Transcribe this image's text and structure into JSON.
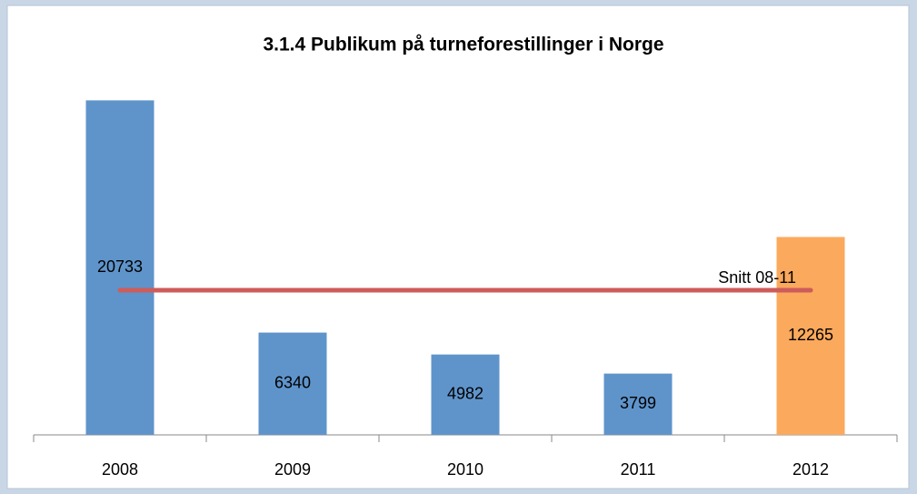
{
  "chart_data": {
    "type": "bar",
    "title": "3.1.4 Publikum på turneforestillinger i Norge",
    "categories": [
      "2008",
      "2009",
      "2010",
      "2011",
      "2012"
    ],
    "values": [
      20733,
      6340,
      4982,
      3799,
      12265
    ],
    "colors": [
      "#5f94cb",
      "#5f94cb",
      "#5f94cb",
      "#5f94cb",
      "#fba95c"
    ],
    "ylim": [
      0,
      22500
    ],
    "reference_line": {
      "label": "Snitt 08-11",
      "value": 8963.5,
      "color": "#cd5c5a"
    }
  }
}
